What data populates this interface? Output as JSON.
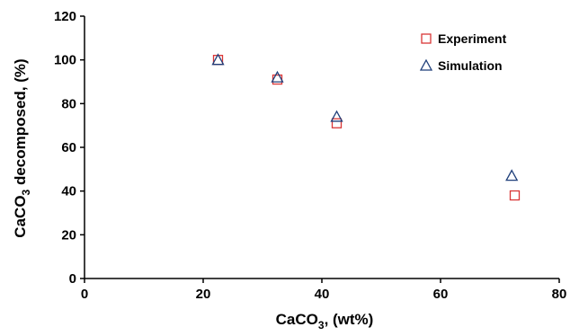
{
  "chart_data": {
    "type": "scatter",
    "title": "",
    "xlabel": {
      "main": "CaCO",
      "sub": "3",
      "rest": ", (wt%)"
    },
    "ylabel": {
      "main": "CaCO",
      "sub": "3",
      "rest": " decomposed, (%)"
    },
    "xlim": [
      0,
      80
    ],
    "ylim": [
      0,
      120
    ],
    "xticks": [
      "0",
      "20",
      "40",
      "60",
      "80"
    ],
    "yticks": [
      "0",
      "20",
      "40",
      "60",
      "80",
      "100",
      "120"
    ],
    "grid": false,
    "legend_position": "top-right",
    "series": [
      {
        "name": "Experiment",
        "marker": "square",
        "color": "#d93636",
        "points": [
          {
            "x": 22.5,
            "y": 100
          },
          {
            "x": 32.5,
            "y": 91
          },
          {
            "x": 42.5,
            "y": 71
          },
          {
            "x": 72.5,
            "y": 38
          }
        ]
      },
      {
        "name": "Simulation",
        "marker": "triangle",
        "color": "#1f3f7a",
        "points": [
          {
            "x": 22.5,
            "y": 100
          },
          {
            "x": 32.5,
            "y": 92
          },
          {
            "x": 42.5,
            "y": 74
          },
          {
            "x": 72.0,
            "y": 47
          }
        ]
      }
    ]
  }
}
